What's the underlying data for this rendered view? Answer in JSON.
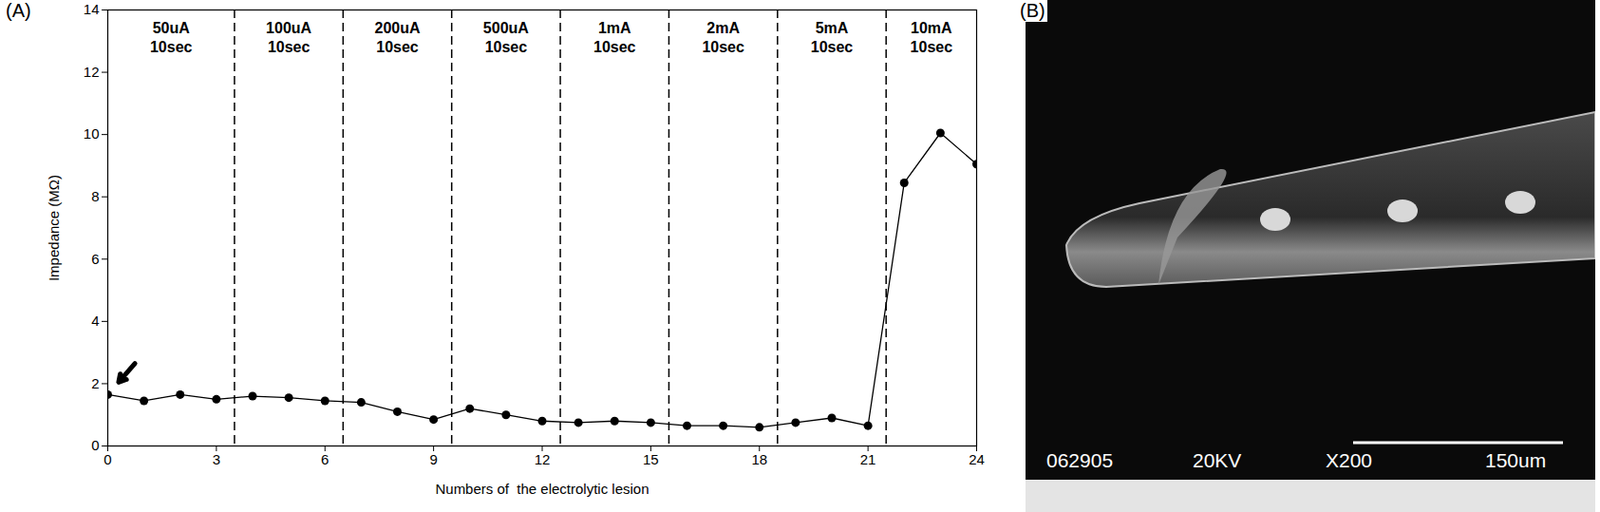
{
  "chart_data": {
    "type": "line",
    "panel_label": "(A)",
    "x_label": "Numbers of  the electrolytic lesion",
    "y_label": "Impedance (MΩ)",
    "x": [
      0,
      1,
      2,
      3,
      4,
      5,
      6,
      7,
      8,
      9,
      10,
      11,
      12,
      13,
      14,
      15,
      16,
      17,
      18,
      19,
      20,
      21,
      22,
      23,
      24
    ],
    "values": [
      1.65,
      1.45,
      1.65,
      1.5,
      1.6,
      1.55,
      1.45,
      1.4,
      1.1,
      0.85,
      1.2,
      1.0,
      0.8,
      0.75,
      0.8,
      0.75,
      0.65,
      0.65,
      0.6,
      0.75,
      0.9,
      0.65,
      8.45,
      10.05,
      9.05
    ],
    "color": "#000000",
    "marker": "circle",
    "xlim": [
      0,
      24
    ],
    "xticks": [
      0,
      3,
      6,
      9,
      12,
      15,
      18,
      21,
      24
    ],
    "ylim": [
      0,
      14
    ],
    "yticks": [
      0,
      2,
      4,
      6,
      8,
      10,
      12,
      14
    ],
    "grid": false,
    "section_bounds": [
      3.5,
      6.5,
      9.5,
      12.5,
      15.5,
      18.5,
      21.5
    ],
    "sections": [
      {
        "current": "50uA",
        "duration": "10sec"
      },
      {
        "current": "100uA",
        "duration": "10sec"
      },
      {
        "current": "200uA",
        "duration": "10sec"
      },
      {
        "current": "500uA",
        "duration": "10sec"
      },
      {
        "current": "1mA",
        "duration": "10sec"
      },
      {
        "current": "2mA",
        "duration": "10sec"
      },
      {
        "current": "5mA",
        "duration": "10sec"
      },
      {
        "current": "10mA",
        "duration": "10sec"
      }
    ]
  },
  "image_panel": {
    "panel_label": "(B)",
    "texts": [
      "062905",
      "20KV",
      "X200",
      "150um"
    ]
  }
}
